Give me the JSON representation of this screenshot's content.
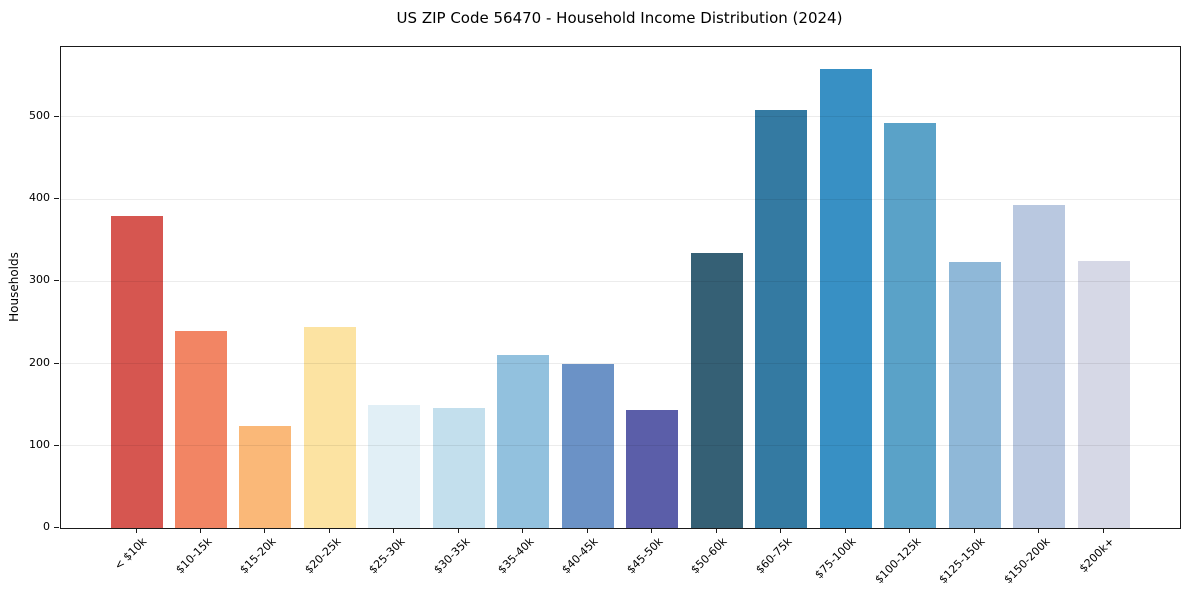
{
  "chart_data": {
    "type": "bar",
    "title": "US ZIP Code 56470 - Household Income Distribution (2024)",
    "xlabel": "",
    "ylabel": "Households",
    "categories": [
      "< $10k",
      "$10-15k",
      "$15-20k",
      "$20-25k",
      "$25-30k",
      "$30-35k",
      "$35-40k",
      "$40-45k",
      "$45-50k",
      "$50-60k",
      "$60-75k",
      "$75-100k",
      "$100-125k",
      "$125-150k",
      "$150-200k",
      "$200k+"
    ],
    "values": [
      380,
      240,
      124,
      244,
      150,
      146,
      211,
      199,
      143,
      334,
      508,
      558,
      493,
      324,
      393,
      325
    ],
    "bar_colors": [
      "#d65650",
      "#f28564",
      "#fab878",
      "#fce3a2",
      "#e1eff6",
      "#c3dfed",
      "#92c1de",
      "#6b92c6",
      "#5b5ea9",
      "#356075",
      "#347aa2",
      "#3890c4",
      "#5aa2c8",
      "#8fb8d8",
      "#b9c8e0",
      "#d6d8e6"
    ],
    "yticks": [
      0,
      100,
      200,
      300,
      400,
      500
    ],
    "ylim": [
      0,
      585
    ],
    "grid": "horizontal",
    "legend": "none",
    "plot_background": "#ffffff",
    "spine_color": "#1a1a1a"
  }
}
